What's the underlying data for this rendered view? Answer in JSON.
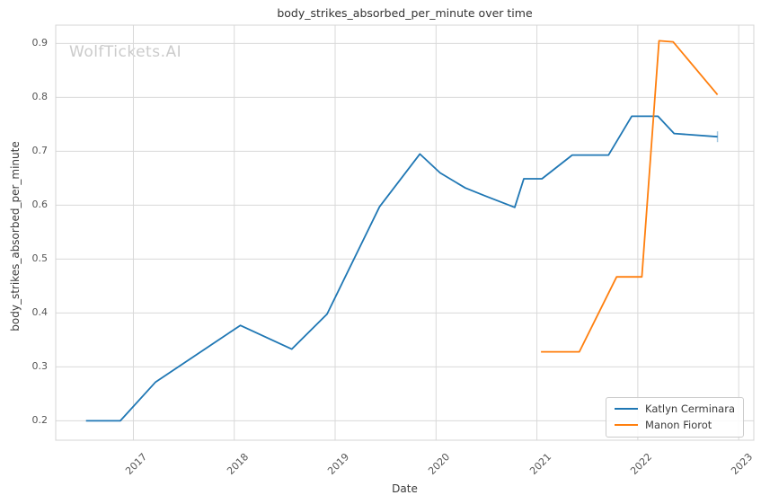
{
  "watermark": "WolfTickets.AI",
  "chart_data": {
    "type": "line",
    "title": "body_strikes_absorbed_per_minute over time",
    "xlabel": "Date",
    "ylabel": "body_strikes_absorbed_per_minute",
    "grid": true,
    "legend_position": "lower right",
    "xlim": [
      2016.23,
      2023.15
    ],
    "ylim": [
      0.164,
      0.934
    ],
    "x_ticks": [
      2017,
      2018,
      2019,
      2020,
      2021,
      2022,
      2023
    ],
    "y_ticks": [
      0.2,
      0.3,
      0.4,
      0.5,
      0.6,
      0.7,
      0.8,
      0.9
    ],
    "colors": {
      "grid": "#d9d9d9",
      "axes_border": "#d4d4d4",
      "title": "#333333",
      "tick_label": "#555555"
    },
    "series": [
      {
        "name": "Katlyn Cerminara",
        "color": "#1f77b4",
        "end_cap": true,
        "points": [
          [
            2016.53,
            0.2
          ],
          [
            2016.87,
            0.2
          ],
          [
            2017.22,
            0.272
          ],
          [
            2018.06,
            0.377
          ],
          [
            2018.57,
            0.333
          ],
          [
            2018.92,
            0.398
          ],
          [
            2019.44,
            0.597
          ],
          [
            2019.84,
            0.695
          ],
          [
            2020.04,
            0.66
          ],
          [
            2020.29,
            0.632
          ],
          [
            2020.49,
            0.617
          ],
          [
            2020.78,
            0.596
          ],
          [
            2020.87,
            0.649
          ],
          [
            2021.05,
            0.649
          ],
          [
            2021.35,
            0.693
          ],
          [
            2021.71,
            0.693
          ],
          [
            2021.94,
            0.765
          ],
          [
            2022.2,
            0.765
          ],
          [
            2022.36,
            0.733
          ],
          [
            2022.79,
            0.727
          ]
        ]
      },
      {
        "name": "Manon Fiorot",
        "color": "#ff7f0e",
        "end_cap": false,
        "points": [
          [
            2021.04,
            0.328
          ],
          [
            2021.42,
            0.328
          ],
          [
            2021.79,
            0.467
          ],
          [
            2022.04,
            0.467
          ],
          [
            2022.21,
            0.905
          ],
          [
            2022.35,
            0.903
          ],
          [
            2022.79,
            0.805
          ]
        ]
      }
    ]
  }
}
